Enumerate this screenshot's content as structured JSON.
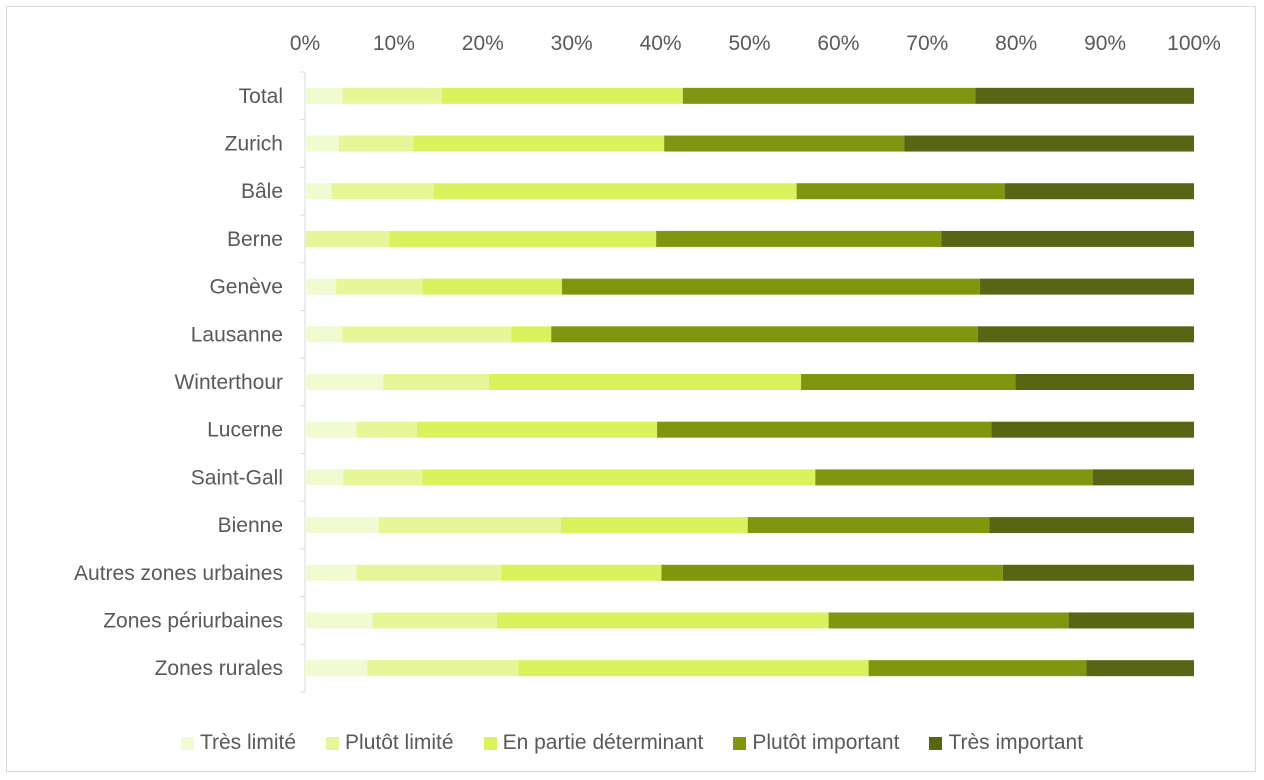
{
  "chart_data": {
    "type": "bar",
    "orientation": "horizontal",
    "stacked": "percent",
    "categories": [
      "Total",
      "Zurich",
      "Bâle",
      "Berne",
      "Genève",
      "Lausanne",
      "Winterthour",
      "Lucerne",
      "Saint-Gall",
      "Bienne",
      "Autres zones urbaines",
      "Zones périurbaines",
      "Zones rurales"
    ],
    "series": [
      {
        "name": "Très limité",
        "color": "#f0fbd2",
        "values": [
          4.2,
          3.8,
          3.0,
          0.0,
          3.5,
          4.2,
          8.8,
          5.8,
          4.3,
          8.3,
          5.8,
          7.6,
          7.0
        ]
      },
      {
        "name": "Plutôt limité",
        "color": "#e6f79a",
        "values": [
          11.2,
          8.4,
          11.5,
          9.5,
          9.7,
          19.0,
          11.9,
          6.8,
          8.9,
          20.5,
          16.3,
          14.0,
          17.0
        ]
      },
      {
        "name": "En partie déterminant",
        "color": "#d9f25d",
        "values": [
          27.1,
          28.2,
          40.8,
          30.0,
          15.7,
          4.5,
          35.1,
          27.0,
          44.2,
          21.0,
          18.0,
          37.3,
          39.4
        ]
      },
      {
        "name": "Plutôt important",
        "color": "#7f960f",
        "values": [
          32.9,
          27.0,
          23.4,
          32.1,
          47.0,
          48.0,
          24.1,
          37.6,
          31.2,
          27.2,
          38.4,
          27.0,
          24.5
        ]
      },
      {
        "name": "Très important",
        "color": "#566612",
        "values": [
          24.6,
          32.6,
          21.3,
          28.4,
          24.1,
          24.3,
          20.1,
          22.8,
          11.4,
          23.0,
          21.5,
          14.1,
          12.1
        ]
      }
    ],
    "x_ticks": [
      "0%",
      "10%",
      "20%",
      "30%",
      "40%",
      "50%",
      "60%",
      "70%",
      "80%",
      "90%",
      "100%"
    ],
    "xlim": [
      0,
      100
    ],
    "x_axis_position": "top",
    "grid": false,
    "legend_position": "bottom"
  }
}
